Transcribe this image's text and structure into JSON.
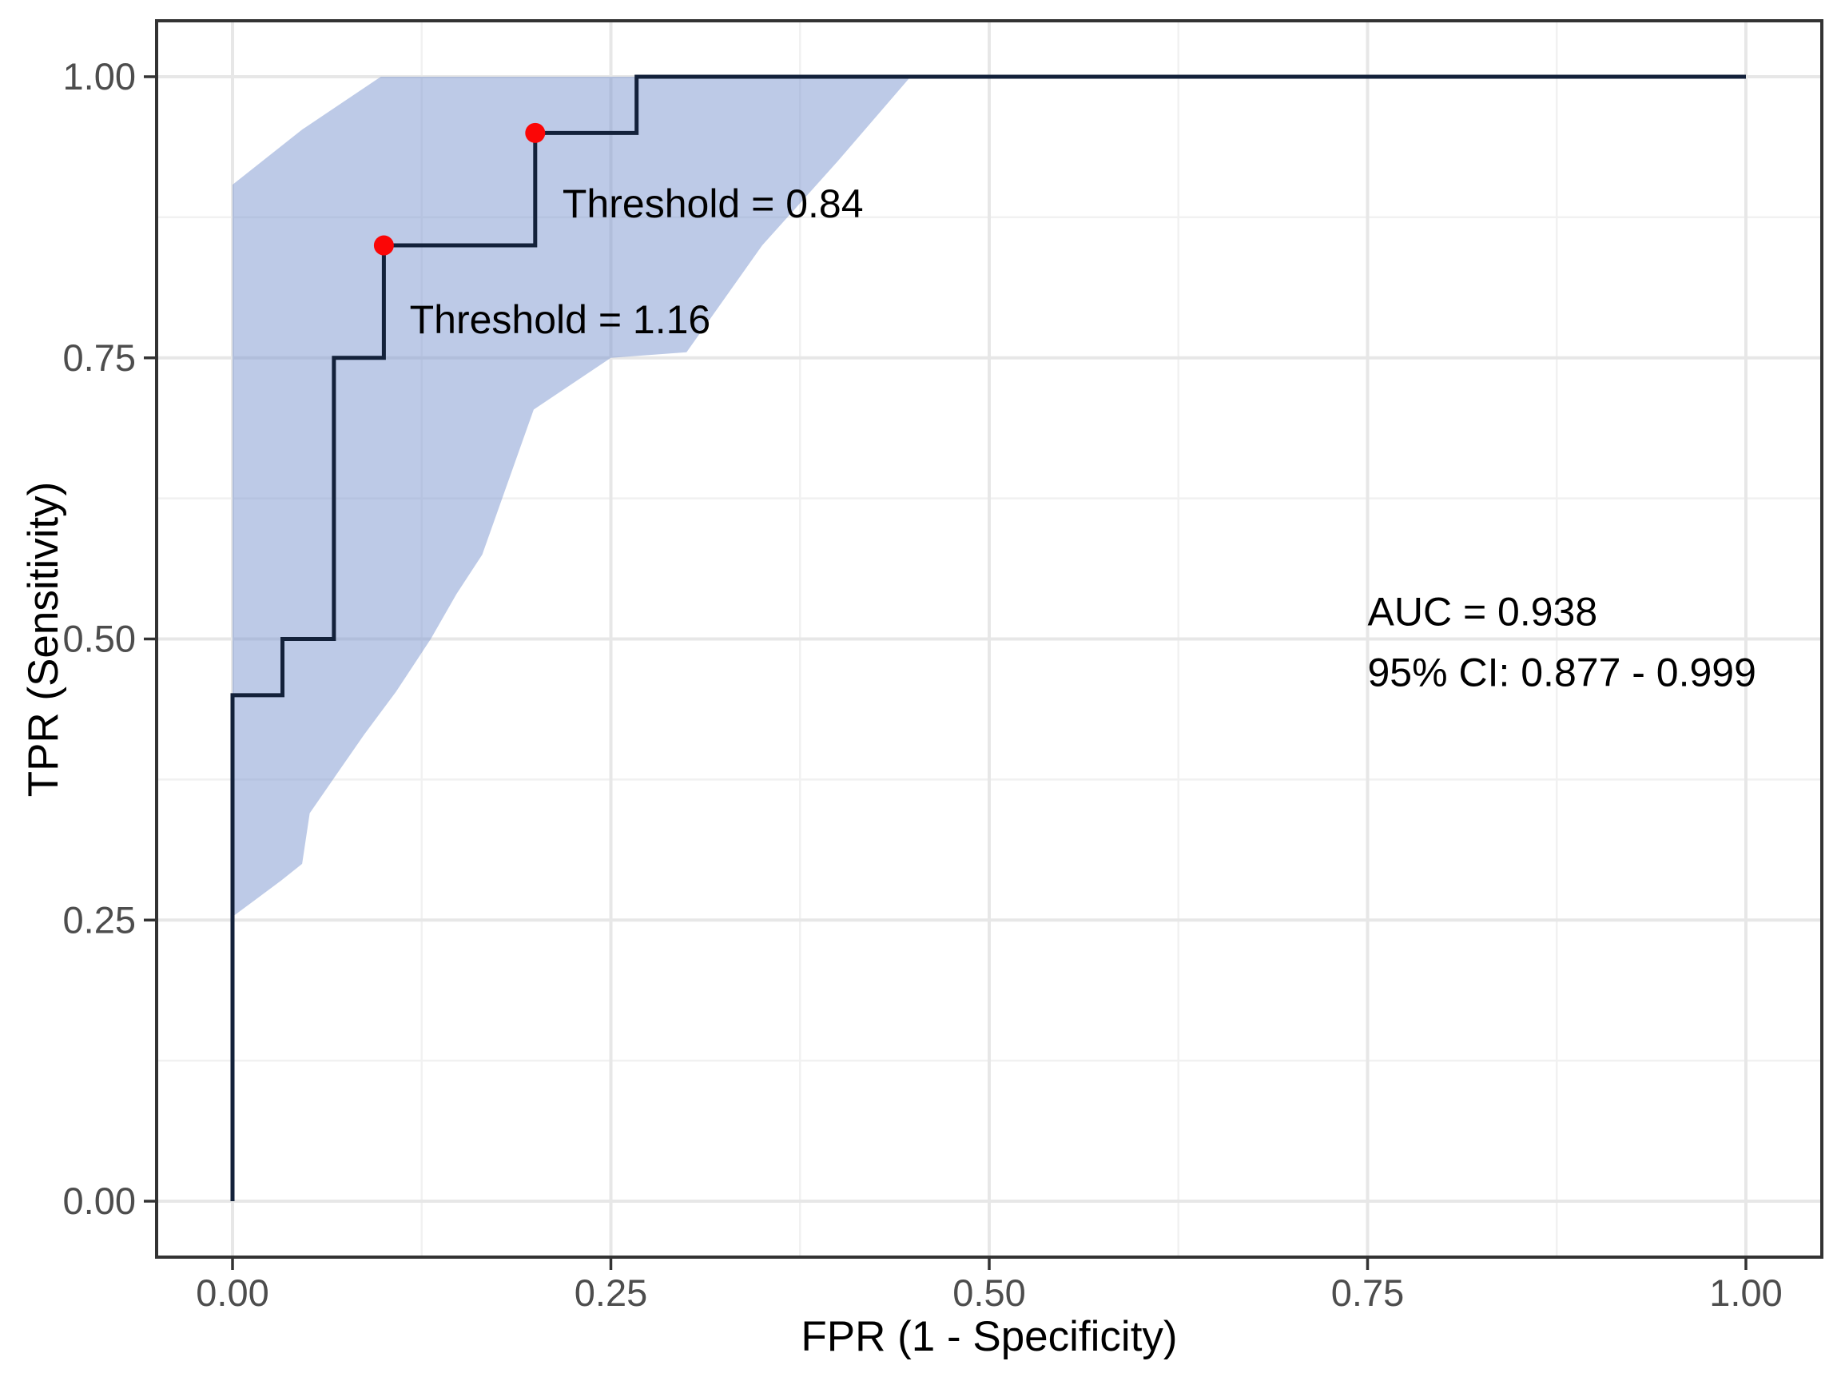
{
  "chart_data": {
    "type": "line",
    "subtype": "roc-step-curve-with-ci-ribbon",
    "title": "",
    "xlabel": "FPR (1 - Specificity)",
    "ylabel": "TPR (Sensitivity)",
    "xlim": [
      0,
      1
    ],
    "ylim": [
      0,
      1
    ],
    "grid": true,
    "legend_position": "none",
    "x_ticks": [
      "0.00",
      "0.25",
      "0.50",
      "0.75",
      "1.00"
    ],
    "y_ticks": [
      "0.00",
      "0.25",
      "0.50",
      "0.75",
      "1.00"
    ],
    "x_tick_values": [
      0,
      0.25,
      0.5,
      0.75,
      1
    ],
    "y_tick_values": [
      0,
      0.25,
      0.5,
      0.75,
      1
    ],
    "minor_tick_values": [
      0.125,
      0.375,
      0.625,
      0.875
    ],
    "roc_curve": {
      "name": "ROC curve",
      "points": [
        [
          0,
          0
        ],
        [
          0,
          0.45
        ],
        [
          0.033,
          0.45
        ],
        [
          0.033,
          0.5
        ],
        [
          0.067,
          0.5
        ],
        [
          0.067,
          0.75
        ],
        [
          0.1,
          0.75
        ],
        [
          0.1,
          0.85
        ],
        [
          0.2,
          0.85
        ],
        [
          0.2,
          0.95
        ],
        [
          0.267,
          0.95
        ],
        [
          0.267,
          1
        ],
        [
          1,
          1
        ]
      ]
    },
    "ci_ribbon": {
      "name": "95% CI band",
      "polygon": [
        [
          0,
          0.904
        ],
        [
          0.046,
          0.953
        ],
        [
          0.098,
          1.0
        ],
        [
          0.448,
          1.0
        ],
        [
          0.4,
          0.925
        ],
        [
          0.35,
          0.85
        ],
        [
          0.3,
          0.755
        ],
        [
          0.25,
          0.75
        ],
        [
          0.199,
          0.704
        ],
        [
          0.165,
          0.575
        ],
        [
          0.148,
          0.54
        ],
        [
          0.131,
          0.5
        ],
        [
          0.108,
          0.453
        ],
        [
          0.087,
          0.415
        ],
        [
          0.07,
          0.382
        ],
        [
          0.051,
          0.345
        ],
        [
          0.046,
          0.3
        ],
        [
          0.032,
          0.285
        ],
        [
          0.014,
          0.267
        ],
        [
          0,
          0.253
        ]
      ]
    },
    "marked_points": [
      {
        "x": 0.1,
        "y": 0.85,
        "threshold": 1.16,
        "label": "Threshold = 1.16"
      },
      {
        "x": 0.2,
        "y": 0.95,
        "threshold": 0.84,
        "label": "Threshold = 0.84"
      }
    ],
    "annotations": [
      {
        "text": "Threshold = 0.84",
        "x": 0.218,
        "y": 0.875
      },
      {
        "text": "Threshold = 1.16",
        "x": 0.117,
        "y": 0.772
      },
      {
        "text": "AUC = 0.938",
        "x": 0.75,
        "y": 0.512
      },
      {
        "text": "95% CI: 0.877 - 0.999",
        "x": 0.75,
        "y": 0.458
      }
    ],
    "auc": 0.938,
    "auc_ci_text": "0.877 - 0.999",
    "colors": {
      "curve": "#13213a",
      "ribbon_base": "#7b95cf",
      "ribbon_alpha": 0.5,
      "point": "#fb0606",
      "grid_major": "#e7e7e7",
      "grid_minor": "#f1f1f1",
      "panel_border": "#333333",
      "tick_mark": "#333333",
      "tick_text": "#4d4d4d",
      "background": "#ffffff"
    }
  }
}
